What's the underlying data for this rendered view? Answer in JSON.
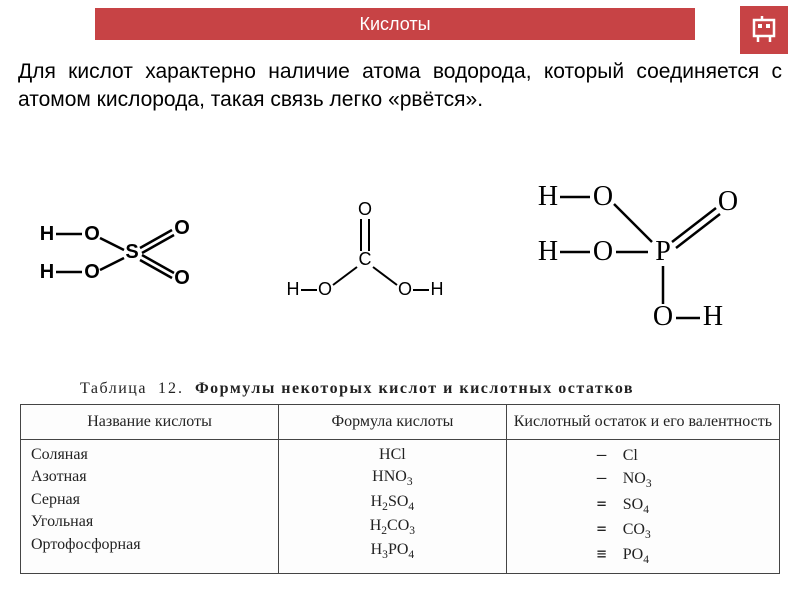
{
  "header": {
    "title": "Кислоты"
  },
  "description": "Для кислот характерно наличие атома водорода, который соединяется с атомом кислорода, такая связь легко «рвётся».",
  "structures": {
    "h2so4": {
      "atoms": [
        "H",
        "H",
        "O",
        "O",
        "O",
        "O",
        "S"
      ]
    },
    "h2co3": {
      "atoms": [
        "H",
        "H",
        "O",
        "O",
        "O",
        "C"
      ]
    },
    "h3po4": {
      "atoms": [
        "H",
        "H",
        "H",
        "O",
        "O",
        "O",
        "O",
        "P"
      ]
    }
  },
  "table": {
    "caption_label": "Таблица",
    "caption_num": "12.",
    "caption_title": "Формулы некоторых кислот и кислотных остатков",
    "columns": [
      "Название кислоты",
      "Формула кислоты",
      "Кислотный остаток и его валентность"
    ],
    "rows": [
      {
        "name": "Соляная",
        "formula_html": "HCl",
        "residue_bond": "—",
        "residue_html": "Cl"
      },
      {
        "name": "Азотная",
        "formula_html": "HNO<span class='sub'>3</span>",
        "residue_bond": "—",
        "residue_html": "NO<span class='sub'>3</span>"
      },
      {
        "name": "Серная",
        "formula_html": "H<span class='sub'>2</span>SO<span class='sub'>4</span>",
        "residue_bond": "=",
        "residue_html": "SO<span class='sub'>4</span>"
      },
      {
        "name": "Угольная",
        "formula_html": "H<span class='sub'>2</span>CO<span class='sub'>3</span>",
        "residue_bond": "=",
        "residue_html": "CO<span class='sub'>3</span>"
      },
      {
        "name": "Ортофосфорная",
        "formula_html": "H<span class='sub'>3</span>PO<span class='sub'>4</span>",
        "residue_bond": "≡",
        "residue_html": "PO<span class='sub'>4</span>"
      }
    ]
  },
  "colors": {
    "accent": "#c74345",
    "text": "#000000",
    "table_border": "#444444"
  }
}
